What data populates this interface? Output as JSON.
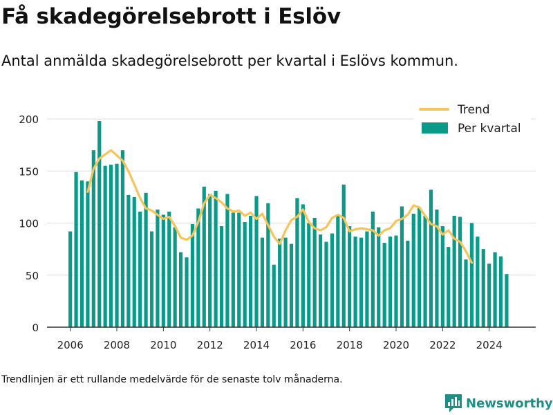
{
  "header": {
    "title": "Få skadegörelsebrott i Eslöv",
    "subtitle": "Antal anmälda skadegörelsebrott per kvartal i Eslövs kommun."
  },
  "footnote": "Trendlinjen är ett rullande medelvärde för de senaste tolv månaderna.",
  "brand": {
    "name": "Newsworthy",
    "icon": "newsworthy-logo-icon",
    "color": "#1f8f86"
  },
  "colors": {
    "bars": "#0a9a8a",
    "trend": "#f7c45a",
    "grid": "#dddddd",
    "axis": "#333333"
  },
  "chart_data": {
    "type": "bar",
    "title": "Få skadegörelsebrott i Eslöv",
    "xlabel": "",
    "ylabel": "",
    "ylim": [
      0,
      220
    ],
    "xlim": [
      2005,
      2026
    ],
    "yticks": [
      0,
      50,
      100,
      150,
      200
    ],
    "xticks": [
      "2006",
      "2008",
      "2010",
      "2012",
      "2014",
      "2016",
      "2018",
      "2020",
      "2022",
      "2024"
    ],
    "grid": true,
    "legend": {
      "position": "top-right",
      "entries": [
        "Trend",
        "Per kvartal"
      ]
    },
    "series": [
      {
        "name": "Per kvartal",
        "type": "bar",
        "x_start": 2006.0,
        "x_step": 0.25,
        "values": [
          92,
          149,
          141,
          140,
          170,
          198,
          155,
          156,
          157,
          170,
          127,
          125,
          111,
          129,
          92,
          113,
          108,
          111,
          96,
          72,
          67,
          99,
          114,
          135,
          128,
          131,
          97,
          128,
          110,
          110,
          101,
          107,
          126,
          86,
          119,
          60,
          85,
          86,
          80,
          124,
          118,
          100,
          105,
          89,
          82,
          90,
          107,
          137,
          97,
          87,
          86,
          92,
          111,
          96,
          81,
          87,
          88,
          116,
          83,
          109,
          115,
          107,
          132,
          113,
          97,
          77,
          107,
          106,
          65,
          100,
          87,
          75,
          61,
          72,
          68,
          51
        ]
      },
      {
        "name": "Trend",
        "type": "line",
        "x_start": 2006.75,
        "x_step": 0.25,
        "values": [
          130,
          152,
          162,
          166,
          170,
          165,
          160,
          150,
          137,
          124,
          114,
          112,
          108,
          104,
          106,
          97,
          86,
          84,
          88,
          101,
          119,
          127,
          124,
          120,
          114,
          111,
          112,
          107,
          110,
          104,
          109,
          98,
          87,
          80,
          93,
          103,
          106,
          113,
          101,
          95,
          93,
          96,
          105,
          108,
          105,
          92,
          94,
          95,
          94,
          93,
          88,
          93,
          95,
          102,
          104,
          108,
          117,
          115,
          107,
          99,
          97,
          89,
          93,
          85,
          82,
          73,
          62
        ]
      }
    ]
  }
}
